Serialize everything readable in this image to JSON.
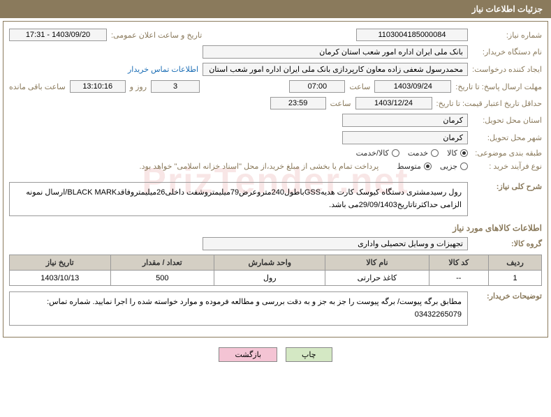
{
  "header": "جزئیات اطلاعات نیاز",
  "watermark": "PrizTender.net",
  "labels": {
    "need_no": "شماره نیاز:",
    "announce_dt": "تاریخ و ساعت اعلان عمومی:",
    "buyer_name": "نام دستگاه خریدار:",
    "requester": "ایجاد کننده درخواست:",
    "contact_link": "اطلاعات تماس خریدار",
    "deadline": "مهلت ارسال پاسخ: تا تاریخ:",
    "hour": "ساعت",
    "days_and": "روز و",
    "remaining": "ساعت باقی مانده",
    "validity": "حداقل تاریخ اعتبار قیمت: تا تاریخ:",
    "delivery_province": "استان محل تحویل:",
    "delivery_city": "شهر محل تحویل:",
    "category": "طبقه بندی موضوعی:",
    "process_type": "نوع فرآیند خرید :",
    "payment_note": "پرداخت تمام یا بخشی از مبلغ خرید،از محل \"اسناد خزانه اسلامی\" خواهد بود.",
    "desc": "شرح کلی نیاز:",
    "goods_info": "اطلاعات کالاهای مورد نیاز",
    "goods_group": "گروه کالا:",
    "buyer_notes": "توضیحات خریدار:"
  },
  "values": {
    "need_no": "1103004185000084",
    "announce_dt": "1403/09/20 - 17:31",
    "buyer_name": "بانک ملی ایران اداره امور شعب استان کرمان",
    "requester": "محمدرسول شعفی زاده معاون کارپردازی بانک ملی ایران اداره امور شعب استان",
    "deadline_date": "1403/09/24",
    "deadline_time": "07:00",
    "days_left": "3",
    "time_left": "13:10:16",
    "validity_date": "1403/12/24",
    "validity_time": "23:59",
    "province": "کرمان",
    "city": "کرمان",
    "description": "رول رسیدمشتری دستگاه کیوسک کارت هدیهGSSباطول240متروعرض79میلیمتروشفت داخلی26میلیمتروفاقدBLACK MARK/ارسال نمونه الزامی حداکثرتاتاریخ29/09/1403می باشد.",
    "goods_group": "تجهیزات و وسایل تحصیلی واداری",
    "buyer_notes": "مطابق برگه پیوست/ برگه پیوست را جز به جز و به دقت بررسی و مطالعه فرموده و موارد خواسته شده را اجرا نمایید. شماره تماس: 03432265079"
  },
  "radios": {
    "category": [
      {
        "label": "کالا",
        "checked": true
      },
      {
        "label": "خدمت",
        "checked": false
      },
      {
        "label": "کالا/خدمت",
        "checked": false
      }
    ],
    "process": [
      {
        "label": "جزیی",
        "checked": false
      },
      {
        "label": "متوسط",
        "checked": true
      }
    ]
  },
  "table": {
    "headers": [
      "ردیف",
      "کد کالا",
      "نام کالا",
      "واحد شمارش",
      "تعداد / مقدار",
      "تاریخ نیاز"
    ],
    "rows": [
      [
        "1",
        "--",
        "کاغذ حرارتی",
        "رول",
        "500",
        "1403/10/13"
      ]
    ]
  },
  "buttons": {
    "print": "چاپ",
    "back": "بازگشت"
  }
}
